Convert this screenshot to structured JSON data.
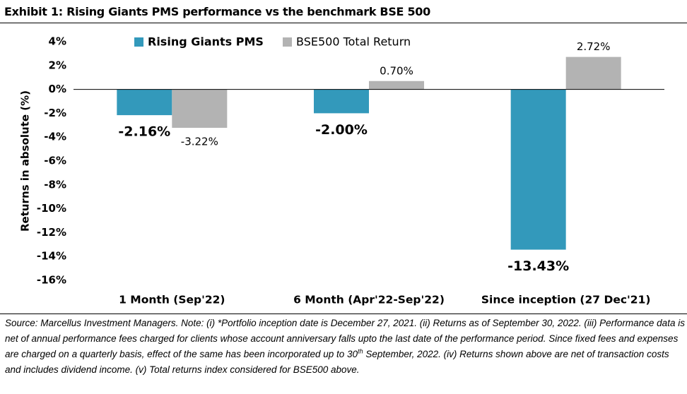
{
  "exhibit": {
    "title": "Exhibit 1: Rising Giants PMS performance vs the benchmark BSE 500"
  },
  "chart_data": {
    "type": "bar",
    "categories": [
      "1 Month (Sep'22)",
      "6 Month (Apr'22-Sep'22)",
      "Since inception (27 Dec'21)"
    ],
    "series": [
      {
        "name": "Rising Giants PMS",
        "values": [
          -2.16,
          -2.0,
          -13.43
        ],
        "labels": [
          "-2.16%",
          "-2.00%",
          "-13.43%"
        ],
        "color": "#3399BB"
      },
      {
        "name": "BSE500 Total Return",
        "values": [
          -3.22,
          0.7,
          2.72
        ],
        "labels": [
          "-3.22%",
          "0.70%",
          "2.72%"
        ],
        "color": "#B3B3B3"
      }
    ],
    "ylabel": "Returns  in absolute (%)",
    "xlabel": "",
    "ylim": [
      -16,
      4
    ],
    "yticks": [
      4,
      2,
      0,
      -2,
      -4,
      -6,
      -8,
      -10,
      -12,
      -14,
      -16
    ],
    "ytick_labels": [
      "4%",
      "2%",
      "0%",
      "-2%",
      "-4%",
      "-6%",
      "-8%",
      "-10%",
      "-12%",
      "-14%",
      "-16%"
    ],
    "grid": false,
    "legend": "top-center"
  },
  "footnote": {
    "part1": "Source: Marcellus Investment Managers. Note: (i) *Portfolio inception date is December 27, 2021. (ii) Returns as of September 30, 2022. (iii) Performance data is net of annual performance fees charged for clients whose account anniversary falls upto the last date of the performance period. Since fixed fees and expenses are charged on a quarterly basis, effect of the same has been incorporated up to 30",
    "sup": "th",
    "part2": " September, 2022. (iv) Returns shown above are net of transaction costs and includes dividend income. (v) Total returns index considered for BSE500 above."
  }
}
